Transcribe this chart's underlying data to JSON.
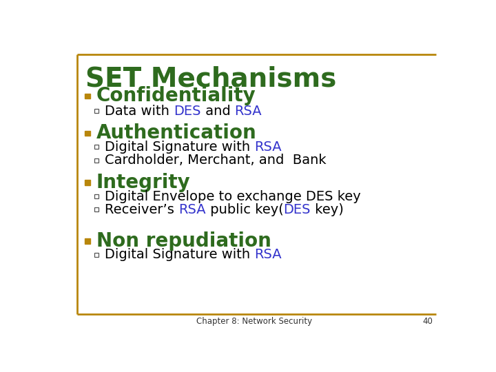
{
  "title": "SET Mechanisms",
  "title_color": "#2e6b1e",
  "title_fontsize": 28,
  "background_color": "#ffffff",
  "border_color": "#b8860b",
  "footer_text": "Chapter 8: Network Security",
  "footer_number": "40",
  "bullet_color": "#b8860b",
  "heading_color": "#2e6b1e",
  "heading_fontsize": 20,
  "sub_fontsize": 14,
  "blue_color": "#3333cc",
  "black_color": "#000000",
  "sections": [
    {
      "heading": "Confidentiality",
      "items": [
        [
          {
            "text": "Data with ",
            "color": "#000000"
          },
          {
            "text": "DES",
            "color": "#3333cc"
          },
          {
            "text": " and ",
            "color": "#000000"
          },
          {
            "text": "RSA",
            "color": "#3333cc"
          }
        ]
      ]
    },
    {
      "heading": "Authentication",
      "items": [
        [
          {
            "text": "Digital Signature with ",
            "color": "#000000"
          },
          {
            "text": "RSA",
            "color": "#3333cc"
          }
        ],
        [
          {
            "text": "Cardholder, Merchant, and  Bank",
            "color": "#000000"
          }
        ]
      ]
    },
    {
      "heading": "Integrity",
      "items": [
        [
          {
            "text": "Digital Envelope to exchange DES key",
            "color": "#000000"
          }
        ],
        [
          {
            "text": "Receiver’s ",
            "color": "#000000"
          },
          {
            "text": "RSA",
            "color": "#3333cc"
          },
          {
            "text": " public key(",
            "color": "#000000"
          },
          {
            "text": "DES",
            "color": "#3333cc"
          },
          {
            "text": " key)",
            "color": "#000000"
          }
        ]
      ]
    },
    {
      "heading": "Non repudiation",
      "items": [
        [
          {
            "text": "Digital Signature with ",
            "color": "#000000"
          },
          {
            "text": "RSA",
            "color": "#3333cc"
          }
        ]
      ]
    }
  ]
}
